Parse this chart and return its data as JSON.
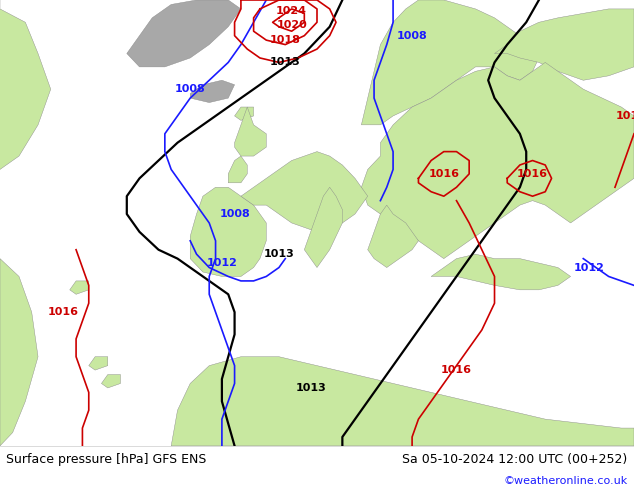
{
  "title_left": "Surface pressure [hPa] GFS ENS",
  "title_right": "Sa 05-10-2024 12:00 UTC (00+252)",
  "watermark": "©weatheronline.co.uk",
  "ocean_color": "#d8e4ec",
  "land_color": "#c8e8a0",
  "gray_color": "#a8a8a8",
  "footer_bg": "#ffffff",
  "black": "#000000",
  "blue": "#1a1aff",
  "red": "#cc0000",
  "font_size_label": 8,
  "font_size_title": 9,
  "font_size_watermark": 8,
  "isobar_lw_black": 1.6,
  "isobar_lw_blue": 1.2,
  "isobar_lw_red": 1.2
}
